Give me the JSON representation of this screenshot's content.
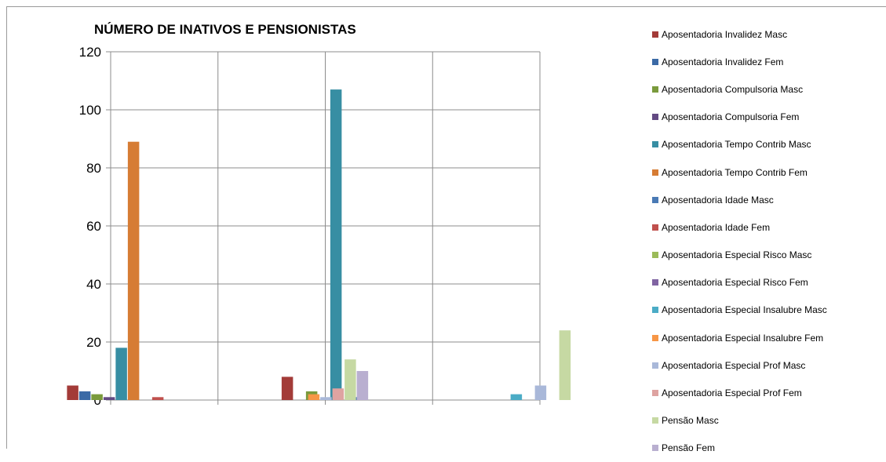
{
  "chart_data": {
    "type": "bar",
    "title": "NÚMERO DE INATIVOS E PENSIONISTAS",
    "xlabel": "",
    "ylabel": "",
    "ylim": [
      0,
      120
    ],
    "yticks": [
      0,
      20,
      40,
      60,
      80,
      100,
      120
    ],
    "categories": [
      "",
      "",
      "",
      ""
    ],
    "grid": "vertical and horizontal",
    "legend_position": "right",
    "series": [
      {
        "name": "Aposentadoria Invalidez Masc",
        "color": "#a33b38",
        "values": [
          5,
          0,
          8,
          0
        ]
      },
      {
        "name": "Aposentadoria Invalidez Fem",
        "color": "#3b6aa6",
        "values": [
          3,
          0,
          0,
          0
        ]
      },
      {
        "name": "Aposentadoria Compulsoria Masc",
        "color": "#7a9a3c",
        "values": [
          2,
          0,
          3,
          0
        ]
      },
      {
        "name": "Aposentadoria Compulsoria Fem",
        "color": "#634a83",
        "values": [
          1,
          0,
          0,
          0
        ]
      },
      {
        "name": "Aposentadoria Tempo Contrib Masc",
        "color": "#378ea3",
        "values": [
          18,
          0,
          107,
          0
        ]
      },
      {
        "name": "Aposentadoria Tempo Contrib Fem",
        "color": "#d67c34",
        "values": [
          89,
          0,
          0,
          0
        ]
      },
      {
        "name": "Aposentadoria Idade Masc",
        "color": "#4a7ab5",
        "values": [
          0,
          0,
          1,
          0
        ]
      },
      {
        "name": "Aposentadoria Idade Fem",
        "color": "#c0504d",
        "values": [
          1,
          0,
          0,
          0
        ]
      },
      {
        "name": "Aposentadoria Especial Risco Masc",
        "color": "#9bbb59",
        "values": [
          0,
          0,
          0,
          0
        ]
      },
      {
        "name": "Aposentadoria Especial Risco Fem",
        "color": "#8064a2",
        "values": [
          0,
          0,
          0,
          0
        ]
      },
      {
        "name": "Aposentadoria Especial Insalubre Masc",
        "color": "#4bacc6",
        "values": [
          0,
          0,
          0,
          2
        ]
      },
      {
        "name": "Aposentadoria Especial Insalubre Fem",
        "color": "#f79646",
        "values": [
          0,
          2,
          0,
          0
        ]
      },
      {
        "name": "Aposentadoria Especial Prof Masc",
        "color": "#a9b8d9",
        "values": [
          0,
          1,
          0,
          5
        ]
      },
      {
        "name": "Aposentadoria Especial Prof Fem",
        "color": "#dea3a1",
        "values": [
          0,
          4,
          0,
          0
        ]
      },
      {
        "name": "Pensão Masc",
        "color": "#c6d9a3",
        "values": [
          0,
          14,
          0,
          24
        ]
      },
      {
        "name": "Pensão Fem",
        "color": "#b9afd0",
        "values": [
          0,
          10,
          0,
          0
        ]
      }
    ]
  }
}
